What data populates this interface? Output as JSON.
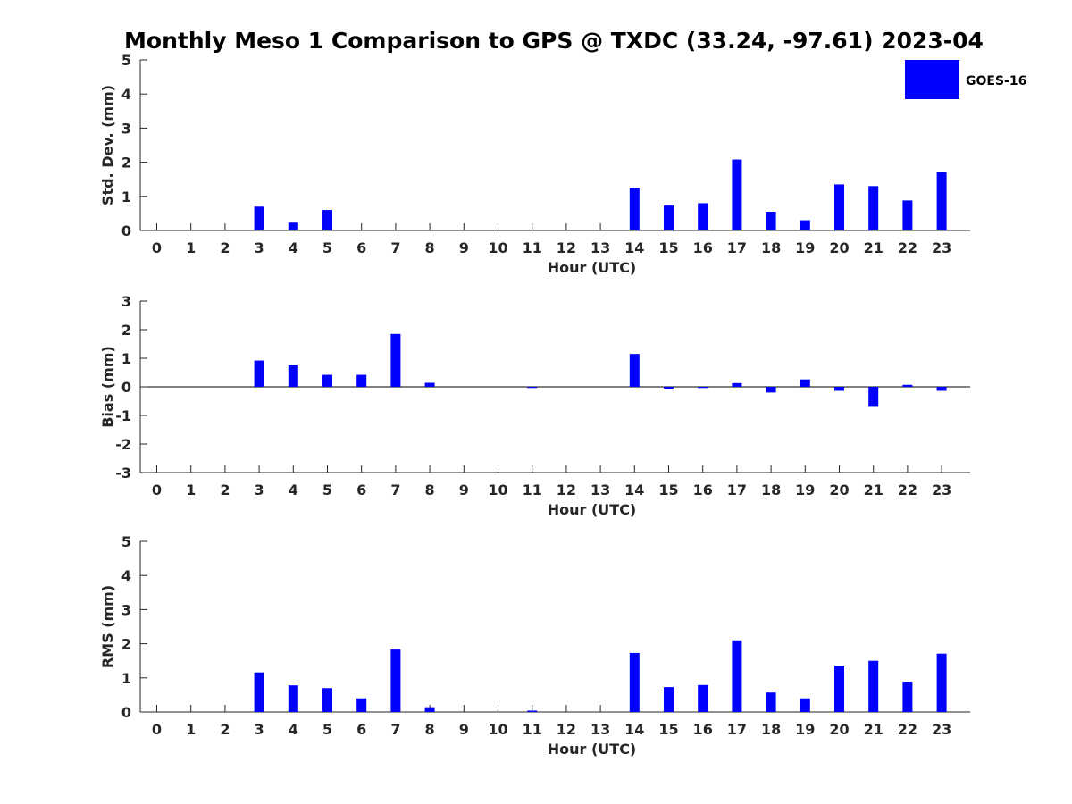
{
  "title": "Monthly Meso 1 Comparison to GPS @ TXDC (33.24, -97.61) 2023-04",
  "legend": {
    "label": "GOES-16",
    "color": "#0000ff"
  },
  "chart_data": [
    {
      "type": "bar",
      "name": "std-dev",
      "title": "Monthly Meso 1 Comparison to GPS @ TXDC (33.24, -97.61) 2023-04",
      "xlabel": "Hour (UTC)",
      "ylabel": "Std. Dev. (mm)",
      "ylim": [
        0,
        5
      ],
      "yticks": [
        "0",
        "1",
        "2",
        "3",
        "4",
        "5"
      ],
      "categories": [
        "0",
        "1",
        "2",
        "3",
        "4",
        "5",
        "6",
        "7",
        "8",
        "9",
        "10",
        "11",
        "12",
        "13",
        "14",
        "15",
        "16",
        "17",
        "18",
        "19",
        "20",
        "21",
        "22",
        "23"
      ],
      "series": [
        {
          "name": "GOES-16",
          "values": [
            0,
            0,
            0,
            0.7,
            0.23,
            0.6,
            0,
            0,
            0,
            0,
            0,
            0,
            0,
            0,
            1.25,
            0.73,
            0.8,
            2.08,
            0.55,
            0.3,
            1.35,
            1.3,
            0.88,
            1.72
          ]
        }
      ]
    },
    {
      "type": "bar",
      "name": "bias",
      "xlabel": "Hour (UTC)",
      "ylabel": "Bias (mm)",
      "ylim": [
        -3,
        3
      ],
      "yticks": [
        "-3",
        "-2",
        "-1",
        "0",
        "1",
        "2",
        "3"
      ],
      "categories": [
        "0",
        "1",
        "2",
        "3",
        "4",
        "5",
        "6",
        "7",
        "8",
        "9",
        "10",
        "11",
        "12",
        "13",
        "14",
        "15",
        "16",
        "17",
        "18",
        "19",
        "20",
        "21",
        "22",
        "23"
      ],
      "series": [
        {
          "name": "GOES-16",
          "values": [
            0,
            0,
            0,
            0.92,
            0.75,
            0.42,
            0.42,
            1.85,
            0.14,
            0,
            0,
            -0.04,
            0,
            0,
            1.15,
            -0.07,
            -0.04,
            0.13,
            -0.2,
            0.26,
            -0.14,
            -0.7,
            0.07,
            -0.14
          ]
        }
      ]
    },
    {
      "type": "bar",
      "name": "rms",
      "xlabel": "Hour (UTC)",
      "ylabel": "RMS (mm)",
      "ylim": [
        0,
        5
      ],
      "yticks": [
        "0",
        "1",
        "2",
        "3",
        "4",
        "5"
      ],
      "categories": [
        "0",
        "1",
        "2",
        "3",
        "4",
        "5",
        "6",
        "7",
        "8",
        "9",
        "10",
        "11",
        "12",
        "13",
        "14",
        "15",
        "16",
        "17",
        "18",
        "19",
        "20",
        "21",
        "22",
        "23"
      ],
      "series": [
        {
          "name": "GOES-16",
          "values": [
            0,
            0,
            0,
            1.16,
            0.78,
            0.7,
            0.4,
            1.83,
            0.14,
            0,
            0,
            0.04,
            0,
            0,
            1.73,
            0.73,
            0.79,
            2.1,
            0.57,
            0.4,
            1.36,
            1.5,
            0.89,
            1.71
          ]
        }
      ]
    }
  ]
}
